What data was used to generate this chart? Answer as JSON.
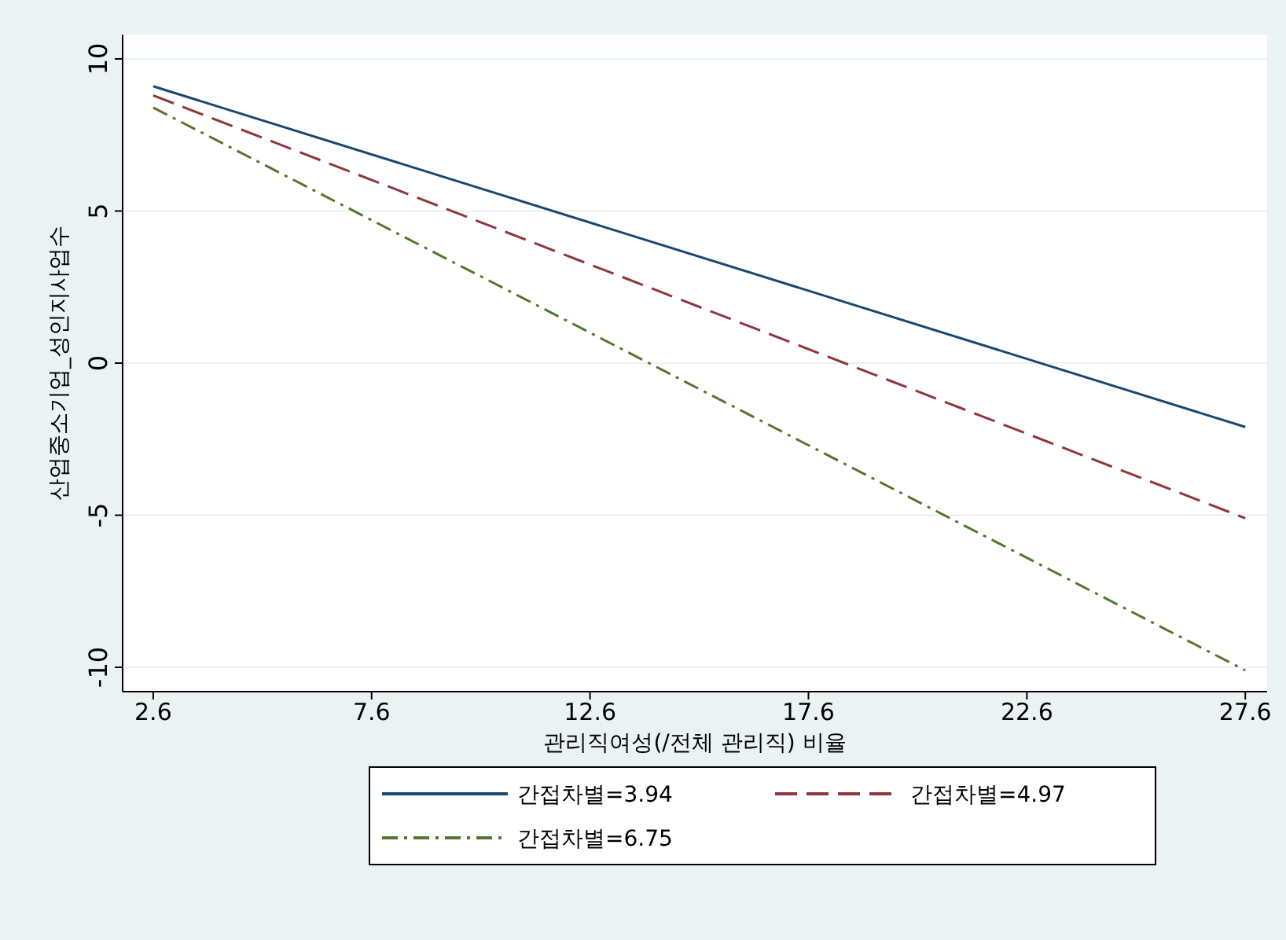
{
  "chart_data": {
    "type": "line",
    "xlabel": "관리직여성(/전체 관리직) 비율",
    "ylabel": "산업중소기업_성인지사업수",
    "x": [
      2.6,
      27.6
    ],
    "xlim": [
      1.9,
      28.1
    ],
    "xticks": [
      2.6,
      7.6,
      12.6,
      17.6,
      22.6,
      27.6
    ],
    "ylim": [
      -10.8,
      10.8
    ],
    "yticks": [
      -10,
      -5,
      0,
      5,
      10
    ],
    "grid": "y",
    "legend": "bottom",
    "marker": "none",
    "series": [
      {
        "name": "간접차별=3.94",
        "color": "#1a476f",
        "values": [
          9.1,
          -2.1
        ],
        "line_style": "solid"
      },
      {
        "name": "간접차별=4.97",
        "color": "#90353b",
        "values": [
          8.8,
          -5.1
        ],
        "line_style": "dashed"
      },
      {
        "name": "간접차별=6.75",
        "color": "#55752f",
        "values": [
          8.4,
          -10.1
        ],
        "line_style": "dashdot"
      }
    ]
  }
}
